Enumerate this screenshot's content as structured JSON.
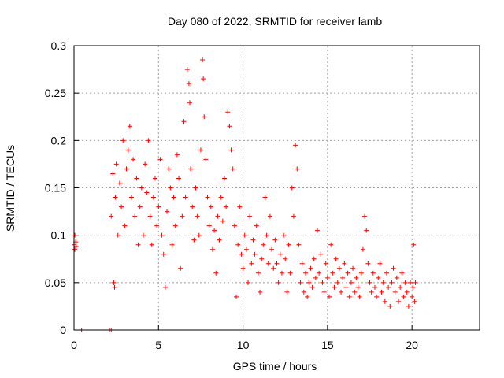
{
  "chart_data": {
    "type": "scatter",
    "title": "Day 080 of 2022, SRMTID for receiver lamb",
    "xlabel": "GPS time / hours",
    "ylabel": "SRMTID / TECUs",
    "xlim": [
      0,
      24
    ],
    "ylim": [
      0,
      0.3
    ],
    "x_ticks": [
      0,
      5,
      10,
      15,
      20
    ],
    "y_ticks": [
      0,
      0.05,
      0.1,
      0.15,
      0.2,
      0.25,
      0.3
    ],
    "x_tick_labels": [
      "0",
      "5",
      "10",
      "15",
      "20"
    ],
    "y_tick_labels": [
      "0",
      "0.05",
      "0.1",
      "0.15",
      "0.2",
      "0.25",
      "0.3"
    ],
    "grid": true,
    "marker": "plus",
    "color": "#ff0000",
    "series": [
      {
        "name": "SRMTID",
        "points": [
          [
            0.0,
            0.09
          ],
          [
            0.05,
            0.085
          ],
          [
            0.1,
            0.093
          ],
          [
            0.05,
            0.1
          ],
          [
            0.12,
            0.088
          ],
          [
            0.45,
            0.0
          ],
          [
            2.1,
            0.0
          ],
          [
            2.2,
            0.0
          ],
          [
            2.2,
            0.12
          ],
          [
            2.3,
            0.165
          ],
          [
            2.35,
            0.05
          ],
          [
            2.4,
            0.045
          ],
          [
            2.45,
            0.14
          ],
          [
            2.5,
            0.175
          ],
          [
            2.6,
            0.1
          ],
          [
            2.7,
            0.155
          ],
          [
            2.8,
            0.13
          ],
          [
            2.9,
            0.2
          ],
          [
            3.0,
            0.11
          ],
          [
            3.1,
            0.17
          ],
          [
            3.2,
            0.19
          ],
          [
            3.3,
            0.215
          ],
          [
            3.4,
            0.14
          ],
          [
            3.5,
            0.18
          ],
          [
            3.6,
            0.12
          ],
          [
            3.7,
            0.16
          ],
          [
            3.8,
            0.09
          ],
          [
            3.9,
            0.13
          ],
          [
            4.0,
            0.15
          ],
          [
            4.1,
            0.1
          ],
          [
            4.2,
            0.175
          ],
          [
            4.3,
            0.145
          ],
          [
            4.4,
            0.2
          ],
          [
            4.5,
            0.12
          ],
          [
            4.6,
            0.09
          ],
          [
            4.7,
            0.14
          ],
          [
            4.8,
            0.16
          ],
          [
            4.9,
            0.11
          ],
          [
            5.0,
            0.13
          ],
          [
            5.1,
            0.18
          ],
          [
            5.2,
            0.1
          ],
          [
            5.3,
            0.08
          ],
          [
            5.4,
            0.045
          ],
          [
            5.5,
            0.125
          ],
          [
            5.6,
            0.17
          ],
          [
            5.7,
            0.15
          ],
          [
            5.8,
            0.09
          ],
          [
            5.9,
            0.14
          ],
          [
            6.0,
            0.11
          ],
          [
            6.1,
            0.185
          ],
          [
            6.2,
            0.16
          ],
          [
            6.3,
            0.065
          ],
          [
            6.4,
            0.12
          ],
          [
            6.5,
            0.22
          ],
          [
            6.6,
            0.14
          ],
          [
            6.7,
            0.275
          ],
          [
            6.8,
            0.26
          ],
          [
            6.85,
            0.24
          ],
          [
            6.9,
            0.17
          ],
          [
            7.0,
            0.13
          ],
          [
            7.1,
            0.095
          ],
          [
            7.2,
            0.15
          ],
          [
            7.3,
            0.12
          ],
          [
            7.4,
            0.1
          ],
          [
            7.5,
            0.19
          ],
          [
            7.6,
            0.285
          ],
          [
            7.65,
            0.265
          ],
          [
            7.7,
            0.225
          ],
          [
            7.8,
            0.18
          ],
          [
            7.9,
            0.14
          ],
          [
            8.0,
            0.11
          ],
          [
            8.1,
            0.13
          ],
          [
            8.2,
            0.085
          ],
          [
            8.3,
            0.105
          ],
          [
            8.4,
            0.06
          ],
          [
            8.5,
            0.12
          ],
          [
            8.6,
            0.095
          ],
          [
            8.7,
            0.14
          ],
          [
            8.8,
            0.115
          ],
          [
            8.9,
            0.16
          ],
          [
            9.0,
            0.13
          ],
          [
            9.1,
            0.23
          ],
          [
            9.2,
            0.215
          ],
          [
            9.3,
            0.19
          ],
          [
            9.4,
            0.17
          ],
          [
            9.5,
            0.11
          ],
          [
            9.6,
            0.035
          ],
          [
            9.7,
            0.09
          ],
          [
            9.8,
            0.13
          ],
          [
            9.9,
            0.08
          ],
          [
            10.0,
            0.065
          ],
          [
            10.1,
            0.1
          ],
          [
            10.2,
            0.085
          ],
          [
            10.3,
            0.05
          ],
          [
            10.4,
            0.12
          ],
          [
            10.5,
            0.07
          ],
          [
            10.6,
            0.095
          ],
          [
            10.7,
            0.08
          ],
          [
            10.8,
            0.11
          ],
          [
            10.9,
            0.06
          ],
          [
            11.0,
            0.04
          ],
          [
            11.1,
            0.075
          ],
          [
            11.2,
            0.09
          ],
          [
            11.3,
            0.14
          ],
          [
            11.4,
            0.1
          ],
          [
            11.5,
            0.07
          ],
          [
            11.6,
            0.12
          ],
          [
            11.7,
            0.085
          ],
          [
            11.8,
            0.065
          ],
          [
            11.9,
            0.095
          ],
          [
            12.0,
            0.07
          ],
          [
            12.1,
            0.05
          ],
          [
            12.2,
            0.08
          ],
          [
            12.3,
            0.06
          ],
          [
            12.4,
            0.1
          ],
          [
            12.5,
            0.075
          ],
          [
            12.6,
            0.04
          ],
          [
            12.7,
            0.09
          ],
          [
            12.8,
            0.06
          ],
          [
            12.9,
            0.15
          ],
          [
            13.0,
            0.12
          ],
          [
            13.1,
            0.195
          ],
          [
            13.2,
            0.17
          ],
          [
            13.3,
            0.09
          ],
          [
            13.4,
            0.05
          ],
          [
            13.5,
            0.07
          ],
          [
            13.6,
            0.04
          ],
          [
            13.7,
            0.06
          ],
          [
            13.8,
            0.035
          ],
          [
            13.9,
            0.05
          ],
          [
            14.0,
            0.065
          ],
          [
            14.1,
            0.045
          ],
          [
            14.2,
            0.075
          ],
          [
            14.3,
            0.055
          ],
          [
            14.4,
            0.105
          ],
          [
            14.5,
            0.06
          ],
          [
            14.6,
            0.08
          ],
          [
            14.7,
            0.05
          ],
          [
            14.8,
            0.04
          ],
          [
            14.9,
            0.07
          ],
          [
            15.0,
            0.055
          ],
          [
            15.1,
            0.035
          ],
          [
            15.2,
            0.09
          ],
          [
            15.3,
            0.06
          ],
          [
            15.4,
            0.045
          ],
          [
            15.5,
            0.075
          ],
          [
            15.6,
            0.05
          ],
          [
            15.7,
            0.065
          ],
          [
            15.8,
            0.04
          ],
          [
            15.9,
            0.055
          ],
          [
            16.0,
            0.07
          ],
          [
            16.1,
            0.045
          ],
          [
            16.2,
            0.06
          ],
          [
            16.3,
            0.035
          ],
          [
            16.4,
            0.05
          ],
          [
            16.5,
            0.065
          ],
          [
            16.6,
            0.04
          ],
          [
            16.7,
            0.055
          ],
          [
            16.8,
            0.045
          ],
          [
            16.9,
            0.035
          ],
          [
            17.0,
            0.06
          ],
          [
            17.1,
            0.085
          ],
          [
            17.2,
            0.12
          ],
          [
            17.3,
            0.105
          ],
          [
            17.4,
            0.07
          ],
          [
            17.5,
            0.05
          ],
          [
            17.6,
            0.04
          ],
          [
            17.7,
            0.06
          ],
          [
            17.8,
            0.045
          ],
          [
            17.9,
            0.035
          ],
          [
            18.0,
            0.055
          ],
          [
            18.1,
            0.07
          ],
          [
            18.2,
            0.04
          ],
          [
            18.3,
            0.05
          ],
          [
            18.4,
            0.03
          ],
          [
            18.5,
            0.06
          ],
          [
            18.6,
            0.045
          ],
          [
            18.7,
            0.025
          ],
          [
            18.8,
            0.05
          ],
          [
            18.9,
            0.065
          ],
          [
            19.0,
            0.04
          ],
          [
            19.1,
            0.055
          ],
          [
            19.2,
            0.03
          ],
          [
            19.3,
            0.045
          ],
          [
            19.4,
            0.06
          ],
          [
            19.5,
            0.035
          ],
          [
            19.6,
            0.05
          ],
          [
            19.7,
            0.04
          ],
          [
            19.8,
            0.025
          ],
          [
            19.9,
            0.05
          ],
          [
            20.0,
            0.035
          ],
          [
            20.05,
            0.045
          ],
          [
            20.1,
            0.09
          ],
          [
            20.15,
            0.03
          ],
          [
            20.2,
            0.05
          ]
        ]
      }
    ]
  }
}
